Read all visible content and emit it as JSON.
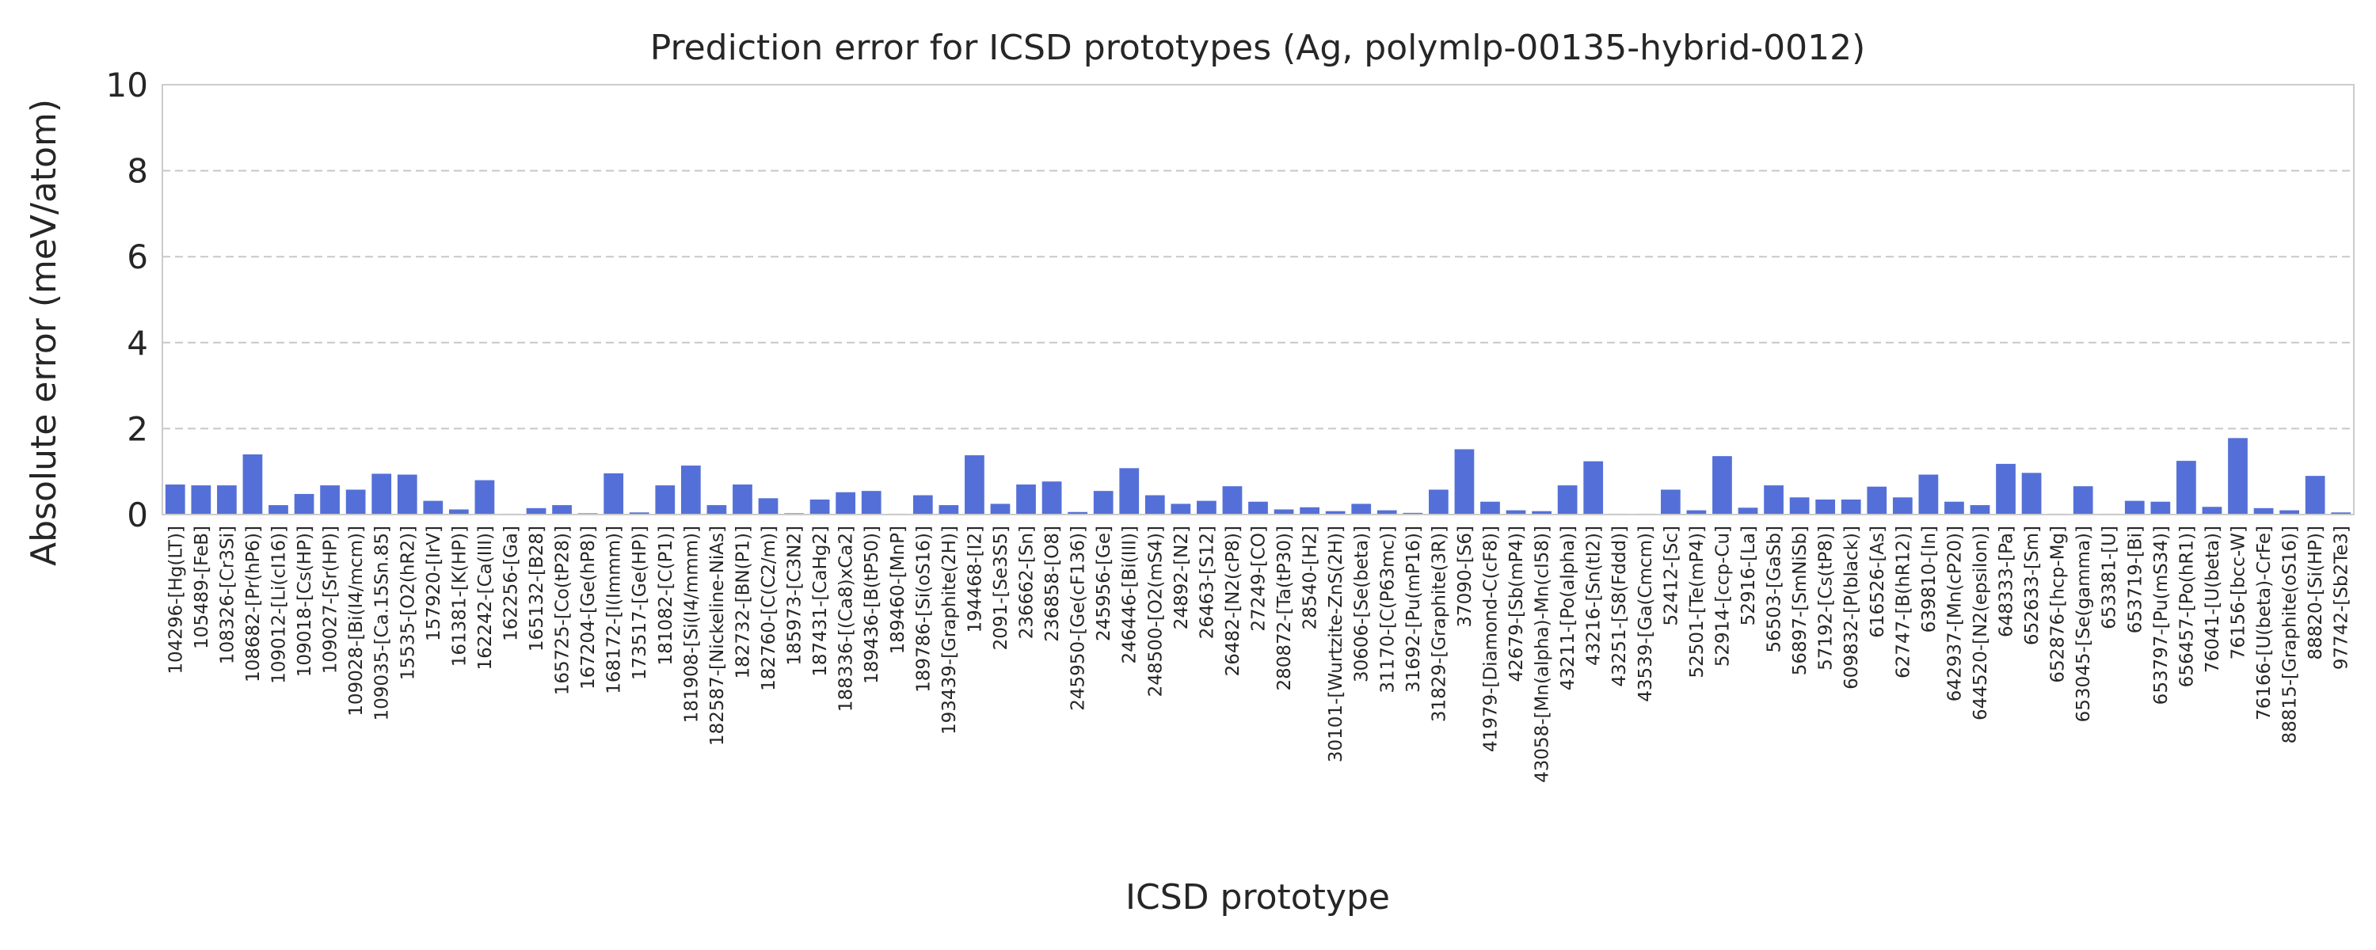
{
  "chart_data": {
    "type": "bar",
    "title": "Prediction error for ICSD prototypes (Ag, polymlp-00135-hybrid-0012)",
    "xlabel": "ICSD prototype",
    "ylabel": "Absolute error (meV/atom)",
    "ylim": [
      0,
      10
    ],
    "yticks": [
      "0",
      "2",
      "4",
      "6",
      "8",
      "10"
    ],
    "grid": "y-dashed",
    "bar_color": "#5470d8",
    "categories": [
      "104296-[Hg(LT)]",
      "105489-[FeB]",
      "108326-[Cr3Si]",
      "108682-[Pr(hP6)]",
      "109012-[Li(cI16)]",
      "109018-[Cs(HP)]",
      "109027-[Sr(HP)]",
      "109028-[Bi(I4/mcm)]",
      "109035-[Ca.15Sn.85]",
      "15535-[O2(hR2)]",
      "157920-[IrV]",
      "161381-[K(HP)]",
      "162242-[Ca(III)]",
      "162256-[Ga]",
      "165132-[B28]",
      "165725-[Co(tP28)]",
      "167204-[Ge(hP8)]",
      "168172-[I(Immm)]",
      "173517-[Ge(HP)]",
      "181082-[C(P1)]",
      "181908-[Si(I4/mmm)]",
      "182587-[Nickeline-NiAs]",
      "182732-[BN(P1)]",
      "182760-[C(C2/m)]",
      "185973-[C3N2]",
      "187431-[CaHg2]",
      "188336-[(Ca8)xCa2]",
      "189436-[B(tP50)]",
      "189460-[MnP]",
      "189786-[Si(oS16)]",
      "193439-[Graphite(2H)]",
      "194468-[I2]",
      "2091-[Se3S5]",
      "236662-[Sn]",
      "236858-[O8]",
      "245950-[Ge(cF136)]",
      "245956-[Ge]",
      "246446-[Bi(III)]",
      "248500-[O2(mS4)]",
      "24892-[N2]",
      "26463-[S12]",
      "26482-[N2(cP8)]",
      "27249-[CO]",
      "280872-[Ta(tP30)]",
      "28540-[H2]",
      "30101-[Wurtzite-ZnS(2H)]",
      "30606-[Se(beta)]",
      "31170-[C(P63mc)]",
      "31692-[Pu(mP16)]",
      "31829-[Graphite(3R)]",
      "37090-[S6]",
      "41979-[Diamond-C(cF8)]",
      "42679-[Sb(mP4)]",
      "43058-[Mn(alpha)-Mn(cI58)]",
      "43211-[Po(alpha)]",
      "43216-[Sn(tI2)]",
      "43251-[S8(Fddd)]",
      "43539-[Ga(Cmcm)]",
      "52412-[Sc]",
      "52501-[Te(mP4)]",
      "52914-[ccp-Cu]",
      "52916-[La]",
      "56503-[GaSb]",
      "56897-[SmNiSb]",
      "57192-[Cs(tP8)]",
      "609832-[P(black)]",
      "616526-[As]",
      "62747-[B(hR12)]",
      "639810-[In]",
      "642937-[Mn(cP20)]",
      "644520-[N2(epsilon)]",
      "648333-[Pa]",
      "652633-[Sm]",
      "652876-[hcp-Mg]",
      "653045-[Se(gamma)]",
      "653381-[U]",
      "653719-[Bi]",
      "653797-[Pu(mS34)]",
      "656457-[Po(hR1)]",
      "76041-[U(beta)]",
      "76156-[bcc-W]",
      "76166-[U(beta)-CrFe]",
      "88815-[Graphite(oS16)]",
      "88820-[Si(HP)]",
      "97742-[Sb2Te3]"
    ],
    "values": [
      0.7,
      0.68,
      0.68,
      1.4,
      0.22,
      0.48,
      0.68,
      0.58,
      0.95,
      0.93,
      0.32,
      0.12,
      0.8,
      0.02,
      0.15,
      0.22,
      0.03,
      0.96,
      0.05,
      0.68,
      1.14,
      0.22,
      0.7,
      0.38,
      0.03,
      0.35,
      0.52,
      0.55,
      0.02,
      0.45,
      0.22,
      1.38,
      0.25,
      0.7,
      0.77,
      0.06,
      0.55,
      1.08,
      0.45,
      0.25,
      0.32,
      0.66,
      0.3,
      0.12,
      0.17,
      0.08,
      0.25,
      0.1,
      0.04,
      0.58,
      1.52,
      0.3,
      0.1,
      0.08,
      0.68,
      1.24,
      0.02,
      0.02,
      0.58,
      0.1,
      1.36,
      0.16,
      0.68,
      0.4,
      0.35,
      0.35,
      0.65,
      0.4,
      0.93,
      0.3,
      0.22,
      1.18,
      0.97,
      0.02,
      0.66,
      0.02,
      0.32,
      0.3,
      1.25,
      0.18,
      1.78,
      0.15,
      0.1,
      0.9,
      0.05
    ]
  }
}
